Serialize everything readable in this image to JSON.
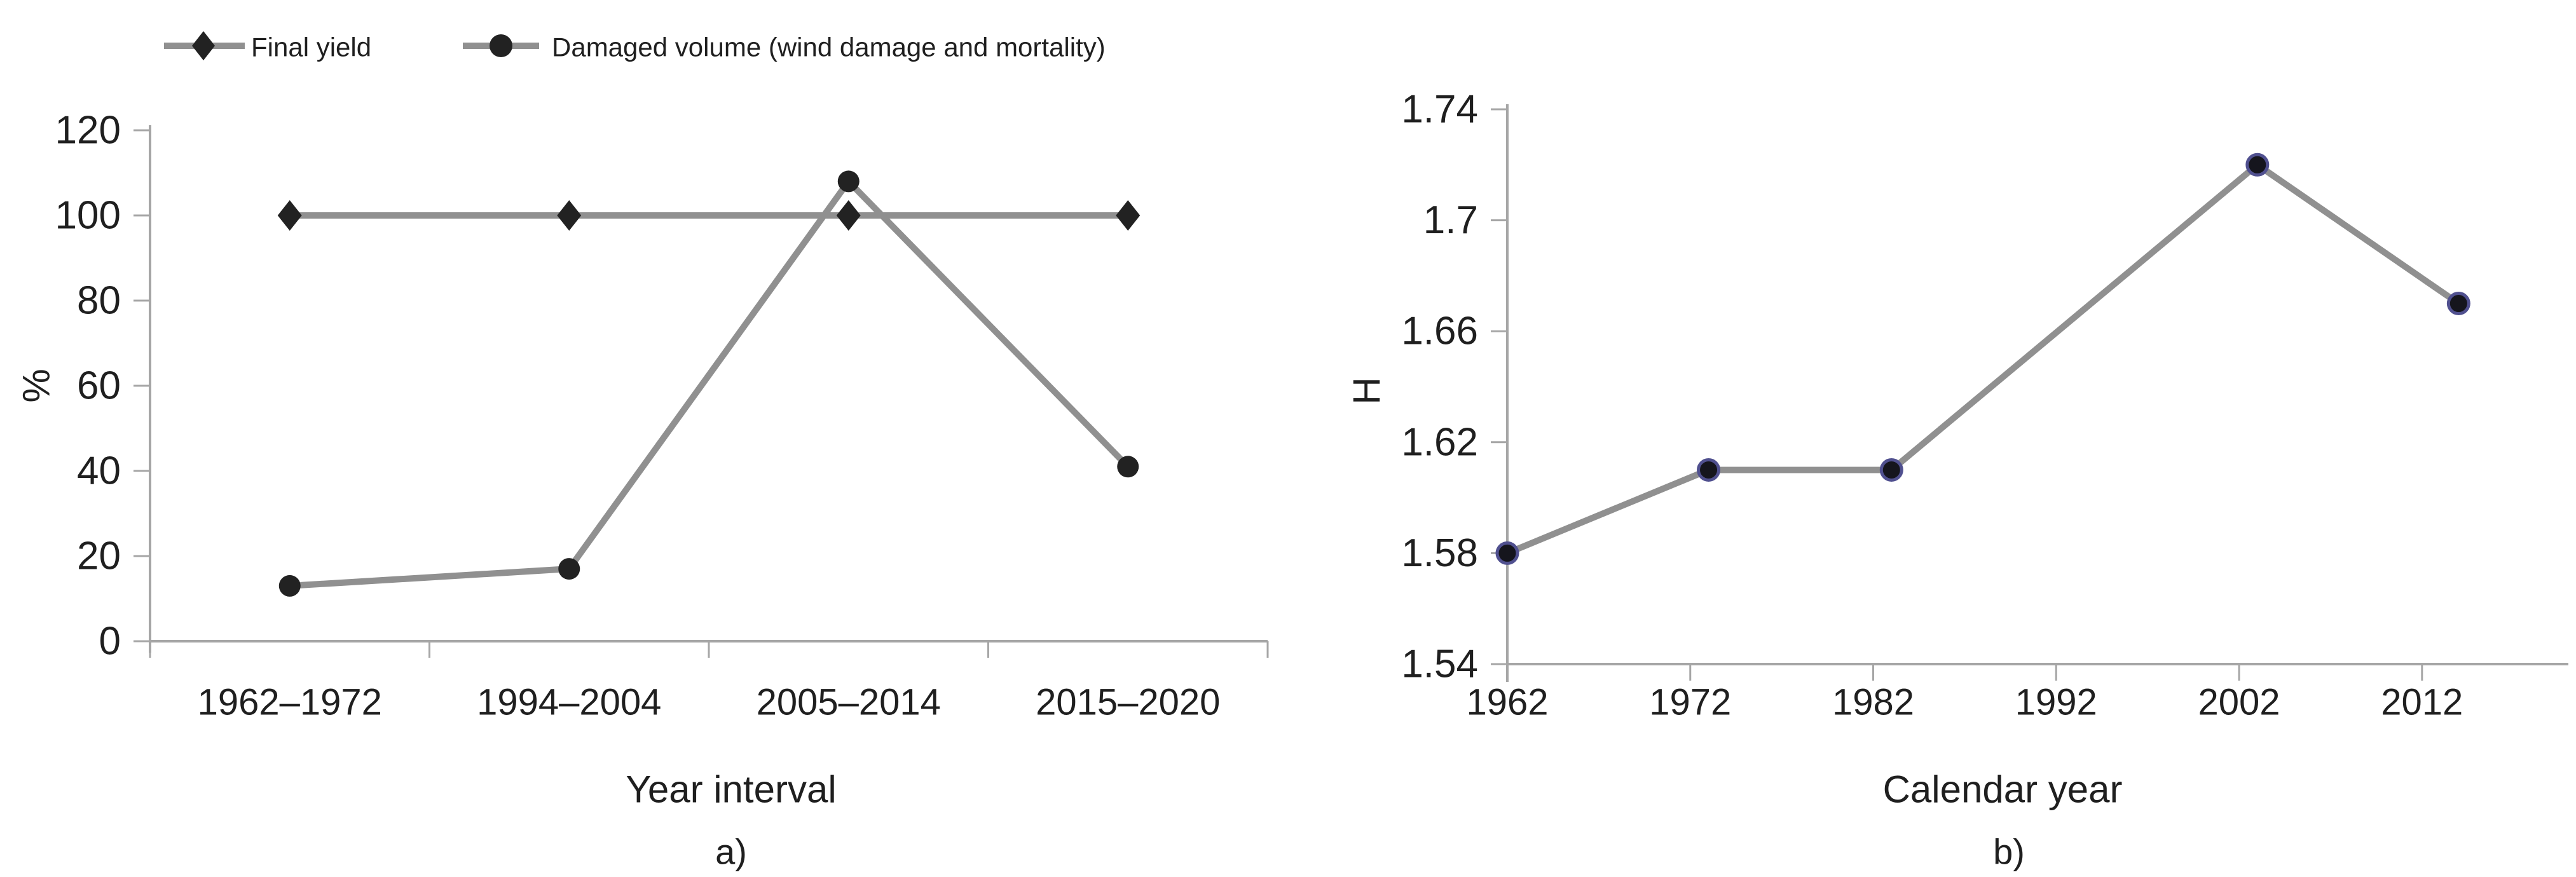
{
  "figure": {
    "background": "#ffffff",
    "captions": {
      "a": "a)",
      "b": "b)"
    }
  },
  "colors": {
    "text": "#1f1f1f",
    "axis": "#a6a6a6",
    "series_line": "#909090",
    "marker_black": "#222222",
    "marker_b_fill": "#15151d",
    "marker_b_ring": "#50508f"
  },
  "chart_data": [
    {
      "id": "a",
      "type": "line",
      "caption": "a)",
      "title": "",
      "xlabel": "Year interval",
      "ylabel": "%",
      "categories": [
        "1962–1972",
        "1994–2004",
        "2005–2014",
        "2015–2020"
      ],
      "y_ticks": [
        0,
        20,
        40,
        60,
        80,
        100,
        120
      ],
      "ylim": [
        0,
        120
      ],
      "grid": false,
      "legend_position": "top",
      "series": [
        {
          "name": "Final yield",
          "marker": "diamond",
          "values": [
            100,
            100,
            100,
            100
          ]
        },
        {
          "name": "Damaged volume (wind damage and mortality)",
          "marker": "circle",
          "values": [
            13,
            17,
            108,
            41
          ]
        }
      ]
    },
    {
      "id": "b",
      "type": "line",
      "caption": "b)",
      "title": "",
      "xlabel": "Calendar year",
      "ylabel": "H",
      "x": [
        1962,
        1973,
        1983,
        2003,
        2014
      ],
      "values": [
        1.58,
        1.61,
        1.61,
        1.72,
        1.67
      ],
      "x_ticks": [
        1962,
        1972,
        1982,
        1992,
        2002,
        2012
      ],
      "xlim": [
        1962,
        2020
      ],
      "y_tick_labels": [
        "1.54",
        "1.58",
        "1.62",
        "1.66",
        "1.7",
        "1.74"
      ],
      "ylim": [
        1.54,
        1.74
      ],
      "grid": false,
      "marker": "circle"
    }
  ]
}
